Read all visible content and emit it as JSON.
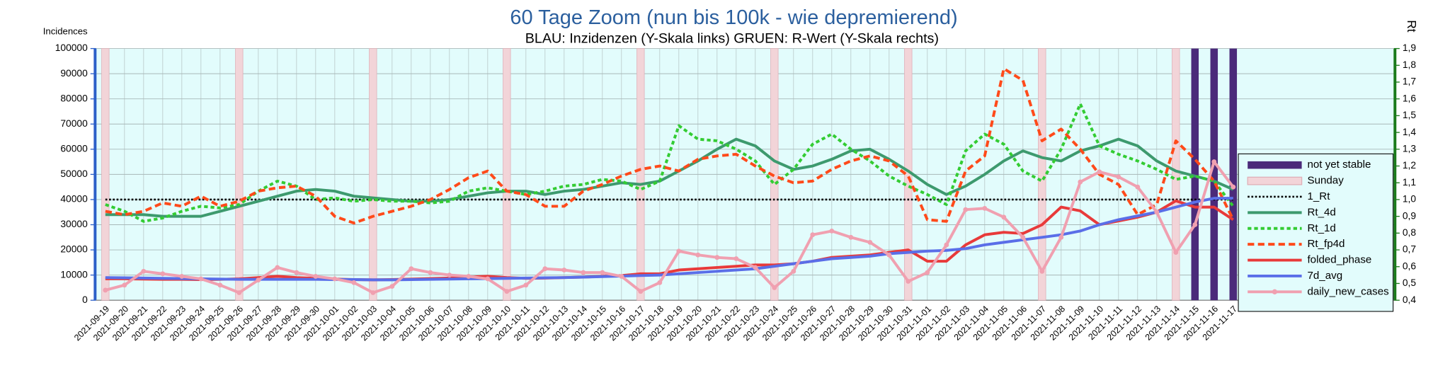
{
  "chart_data": {
    "type": "line",
    "title": "60 Tage Zoom  (nun bis 100k - wie depremierend)",
    "subtitle": "BLAU: Inzidenzen (Y-Skala links)     GRUEN: R-Wert (Y-Skala rechts)",
    "y_label": "Incidences",
    "y2_label": "Rt",
    "categories": [
      "2021-09-19",
      "2021-09-20",
      "2021-09-21",
      "2021-09-22",
      "2021-09-23",
      "2021-09-24",
      "2021-09-25",
      "2021-09-26",
      "2021-09-27",
      "2021-09-28",
      "2021-09-29",
      "2021-09-30",
      "2021-10-01",
      "2021-10-02",
      "2021-10-03",
      "2021-10-04",
      "2021-10-05",
      "2021-10-06",
      "2021-10-07",
      "2021-10-08",
      "2021-10-09",
      "2021-10-10",
      "2021-10-11",
      "2021-10-12",
      "2021-10-13",
      "2021-10-14",
      "2021-10-15",
      "2021-10-16",
      "2021-10-17",
      "2021-10-18",
      "2021-10-19",
      "2021-10-20",
      "2021-10-21",
      "2021-10-22",
      "2021-10-23",
      "2021-10-24",
      "2021-10-25",
      "2021-10-26",
      "2021-10-27",
      "2021-10-28",
      "2021-10-29",
      "2021-10-30",
      "2021-10-31",
      "2021-11-01",
      "2021-11-02",
      "2021-11-03",
      "2021-11-04",
      "2021-11-05",
      "2021-11-06",
      "2021-11-07",
      "2021-11-08",
      "2021-11-09",
      "2021-11-10",
      "2021-11-11",
      "2021-11-12",
      "2021-11-13",
      "2021-11-14",
      "2021-11-15",
      "2021-11-16",
      "2021-11-17"
    ],
    "ylim": [
      0,
      100000
    ],
    "yticks": [
      0,
      10000,
      20000,
      30000,
      40000,
      50000,
      60000,
      70000,
      80000,
      90000,
      100000
    ],
    "y2lim": [
      0.4,
      1.9
    ],
    "y2ticks": [
      {
        "value": 0.4,
        "label": "0,4"
      },
      {
        "value": 0.5,
        "label": "0,5"
      },
      {
        "value": 0.6,
        "label": "0,6"
      },
      {
        "value": 0.7,
        "label": "0,7"
      },
      {
        "value": 0.8,
        "label": "0,8"
      },
      {
        "value": 0.9,
        "label": "0,9"
      },
      {
        "value": 1.0,
        "label": "1,0"
      },
      {
        "value": 1.1,
        "label": "1,1"
      },
      {
        "value": 1.2,
        "label": "1,2"
      },
      {
        "value": 1.3,
        "label": "1,3"
      },
      {
        "value": 1.4,
        "label": "1,4"
      },
      {
        "value": 1.5,
        "label": "1,5"
      },
      {
        "value": 1.6,
        "label": "1,6"
      },
      {
        "value": 1.7,
        "label": "1,7"
      },
      {
        "value": 1.8,
        "label": "1,8"
      },
      {
        "value": 1.9,
        "label": "1,9"
      }
    ],
    "grid": true,
    "legend": "right",
    "series": [
      {
        "name": "not yet stable",
        "color": "#4b2a7a",
        "kind": "bar",
        "axis": "y",
        "values": [
          null,
          null,
          null,
          null,
          null,
          null,
          null,
          null,
          null,
          null,
          null,
          null,
          null,
          null,
          null,
          null,
          null,
          null,
          null,
          null,
          null,
          null,
          null,
          null,
          null,
          null,
          null,
          null,
          null,
          null,
          null,
          null,
          null,
          null,
          null,
          null,
          null,
          null,
          null,
          null,
          null,
          null,
          null,
          null,
          null,
          null,
          null,
          null,
          null,
          null,
          null,
          null,
          null,
          null,
          null,
          null,
          null,
          100000,
          100000,
          100000
        ]
      },
      {
        "name": "Sunday",
        "color": "#f2d4d8",
        "kind": "bar",
        "axis": "y",
        "values": [
          100000,
          null,
          null,
          null,
          null,
          null,
          null,
          100000,
          null,
          null,
          null,
          null,
          null,
          null,
          100000,
          null,
          null,
          null,
          null,
          null,
          null,
          100000,
          null,
          null,
          null,
          null,
          null,
          null,
          100000,
          null,
          null,
          null,
          null,
          null,
          null,
          100000,
          null,
          null,
          null,
          null,
          null,
          null,
          100000,
          null,
          null,
          null,
          null,
          null,
          null,
          100000,
          null,
          null,
          null,
          null,
          null,
          null,
          100000,
          null,
          null,
          null
        ]
      },
      {
        "name": "1_Rt",
        "color": "#000000",
        "kind": "line",
        "dash": "dotted",
        "axis": "y2",
        "values": [
          1,
          1,
          1,
          1,
          1,
          1,
          1,
          1,
          1,
          1,
          1,
          1,
          1,
          1,
          1,
          1,
          1,
          1,
          1,
          1,
          1,
          1,
          1,
          1,
          1,
          1,
          1,
          1,
          1,
          1,
          1,
          1,
          1,
          1,
          1,
          1,
          1,
          1,
          1,
          1,
          1,
          1,
          1,
          1,
          1,
          1,
          1,
          1,
          1,
          1,
          1,
          1,
          1,
          1,
          1,
          1,
          1,
          1,
          1,
          1
        ]
      },
      {
        "name": "Rt_4d",
        "color": "#3d9a6e",
        "kind": "line",
        "dash": "solid",
        "axis": "y2",
        "values": [
          0.91,
          0.91,
          0.91,
          0.9,
          0.9,
          0.9,
          0.93,
          0.96,
          0.99,
          1.02,
          1.05,
          1.06,
          1.05,
          1.02,
          1.01,
          1.0,
          0.99,
          0.99,
          1.0,
          1.02,
          1.04,
          1.05,
          1.05,
          1.03,
          1.05,
          1.06,
          1.08,
          1.1,
          1.09,
          1.11,
          1.17,
          1.23,
          1.3,
          1.36,
          1.32,
          1.23,
          1.18,
          1.2,
          1.24,
          1.29,
          1.3,
          1.24,
          1.17,
          1.09,
          1.03,
          1.08,
          1.15,
          1.23,
          1.29,
          1.25,
          1.23,
          1.29,
          1.32,
          1.36,
          1.32,
          1.23,
          1.17,
          1.14,
          1.11,
          1.06
        ]
      },
      {
        "name": "Rt_1d",
        "color": "#33cc33",
        "kind": "line",
        "dash": "dashed",
        "axis": "y2",
        "values": [
          0.97,
          0.93,
          0.87,
          0.89,
          0.93,
          0.96,
          0.95,
          0.97,
          1.05,
          1.11,
          1.08,
          1.0,
          1.01,
          0.99,
          1.0,
          0.99,
          0.99,
          0.98,
          0.99,
          1.05,
          1.07,
          1.05,
          1.03,
          1.05,
          1.08,
          1.09,
          1.12,
          1.11,
          1.06,
          1.11,
          1.44,
          1.36,
          1.35,
          1.3,
          1.23,
          1.09,
          1.18,
          1.33,
          1.39,
          1.3,
          1.23,
          1.14,
          1.08,
          1.03,
          0.97,
          1.29,
          1.39,
          1.33,
          1.17,
          1.11,
          1.3,
          1.57,
          1.32,
          1.27,
          1.23,
          1.18,
          1.12,
          1.14,
          1.11,
          0.96
        ]
      },
      {
        "name": "Rt_fp4d",
        "color": "#ff4a1a",
        "kind": "line",
        "dash": "long-dashed",
        "axis": "y2",
        "values": [
          0.93,
          0.91,
          0.93,
          0.98,
          0.96,
          1.02,
          0.96,
          0.99,
          1.05,
          1.07,
          1.08,
          1.02,
          0.9,
          0.86,
          0.9,
          0.93,
          0.96,
          1.0,
          1.06,
          1.13,
          1.17,
          1.05,
          1.03,
          0.96,
          0.96,
          1.05,
          1.09,
          1.14,
          1.18,
          1.2,
          1.17,
          1.24,
          1.26,
          1.27,
          1.2,
          1.14,
          1.1,
          1.11,
          1.18,
          1.23,
          1.26,
          1.23,
          1.14,
          0.88,
          0.87,
          1.17,
          1.26,
          1.78,
          1.71,
          1.35,
          1.42,
          1.3,
          1.15,
          1.09,
          0.91,
          0.97,
          1.35,
          1.24,
          1.11,
          0.88
        ]
      },
      {
        "name": "folded_phase",
        "color": "#e83a3a",
        "kind": "line",
        "dash": "solid",
        "axis": "y",
        "values": [
          8500,
          8500,
          8400,
          8300,
          8300,
          8200,
          8300,
          8500,
          9000,
          9500,
          9000,
          8700,
          8400,
          8200,
          8100,
          8200,
          8400,
          8600,
          8800,
          9200,
          9500,
          9000,
          8700,
          8800,
          9000,
          9200,
          9500,
          9800,
          10500,
          10500,
          12000,
          12500,
          13000,
          13500,
          14000,
          14000,
          14500,
          15500,
          17000,
          17500,
          18000,
          19000,
          20000,
          15500,
          15500,
          22000,
          26000,
          27000,
          26500,
          30000,
          37000,
          35500,
          30000,
          31500,
          33000,
          35000,
          39500,
          37000,
          37000,
          32000
        ]
      },
      {
        "name": "7d_avg",
        "color": "#5a6ee8",
        "kind": "line",
        "dash": "solid",
        "axis": "y",
        "values": [
          9000,
          8900,
          8800,
          8700,
          8600,
          8500,
          8400,
          8300,
          8300,
          8300,
          8300,
          8300,
          8200,
          8200,
          8100,
          8100,
          8200,
          8300,
          8400,
          8500,
          8600,
          8700,
          8800,
          8900,
          9000,
          9200,
          9400,
          9600,
          9800,
          10000,
          10500,
          11000,
          11500,
          12000,
          12500,
          13500,
          14500,
          15500,
          16500,
          17000,
          17500,
          18500,
          19000,
          19500,
          19800,
          20500,
          22000,
          23000,
          24000,
          25000,
          26000,
          27500,
          30000,
          32000,
          33500,
          35000,
          37000,
          39000,
          40500,
          40500
        ]
      },
      {
        "name": "daily_new_cases",
        "color": "#f0a0b0",
        "kind": "line",
        "dash": "solid",
        "marker": true,
        "axis": "y",
        "values": [
          4000,
          6000,
          11500,
          10500,
          9500,
          8500,
          6000,
          3000,
          8000,
          13000,
          11000,
          9500,
          8500,
          7000,
          3000,
          5500,
          12500,
          11000,
          10000,
          9500,
          8500,
          3500,
          6000,
          12500,
          12000,
          11000,
          11000,
          9500,
          3500,
          7000,
          19500,
          18000,
          17000,
          16500,
          13000,
          5000,
          11500,
          26000,
          27500,
          25000,
          23000,
          18000,
          7500,
          11000,
          22000,
          36000,
          36500,
          33000,
          25000,
          11500,
          25000,
          47000,
          51000,
          49000,
          45000,
          35000,
          19000,
          30000,
          55000,
          45000
        ]
      }
    ]
  }
}
